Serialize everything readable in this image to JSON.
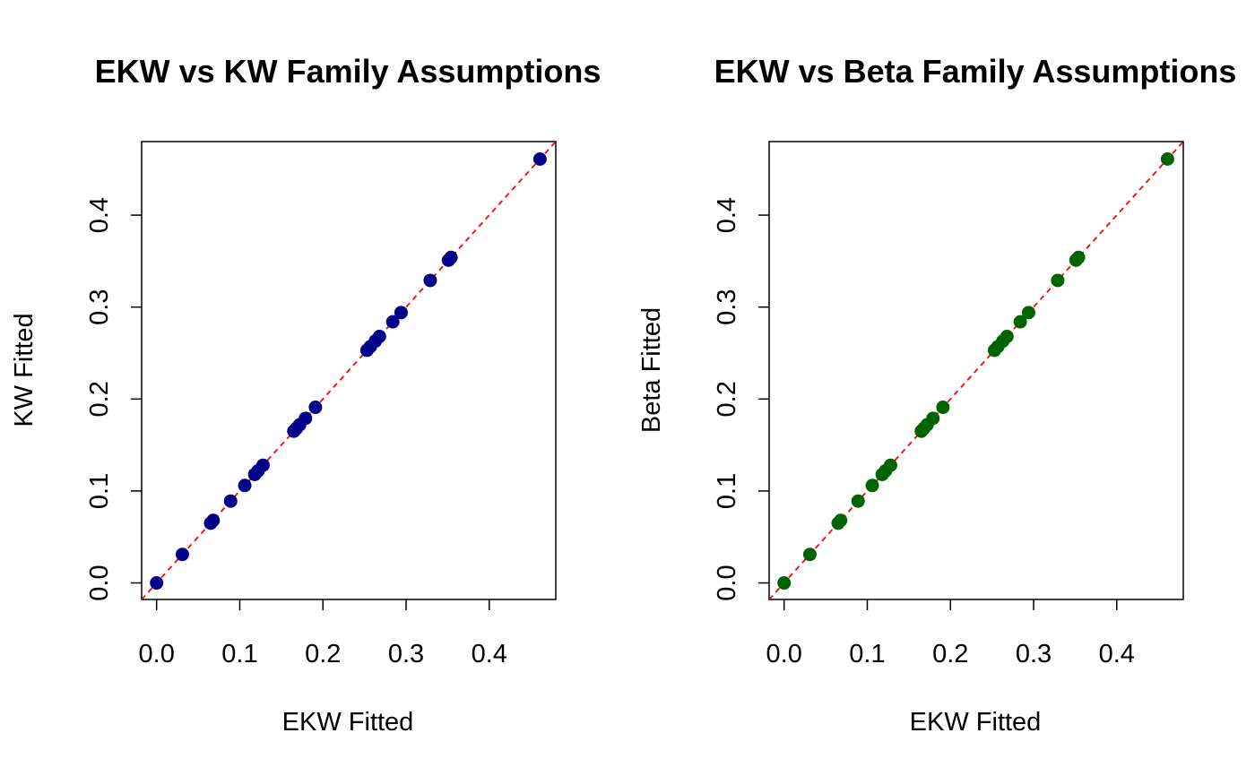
{
  "chart_data": [
    {
      "type": "scatter",
      "title": "EKW vs KW Family Assumptions",
      "xlabel": "EKW Fitted",
      "ylabel": "KW Fitted",
      "xlim": [
        -0.018,
        0.48
      ],
      "ylim": [
        -0.018,
        0.48
      ],
      "xticks": [
        0.0,
        0.1,
        0.2,
        0.3,
        0.4
      ],
      "yticks": [
        0.0,
        0.1,
        0.2,
        0.3,
        0.4
      ],
      "xtick_labels": [
        "0.0",
        "0.1",
        "0.2",
        "0.3",
        "0.4"
      ],
      "ytick_labels": [
        "0.0",
        "0.1",
        "0.2",
        "0.3",
        "0.4"
      ],
      "point_color": "#00008B",
      "reference_line": {
        "type": "y=x",
        "style": "dashed",
        "color": "#FF0000"
      },
      "series": [
        {
          "x": [
            0.0,
            0.031,
            0.065,
            0.068,
            0.089,
            0.106,
            0.118,
            0.122,
            0.128,
            0.165,
            0.168,
            0.172,
            0.179,
            0.191,
            0.253,
            0.257,
            0.263,
            0.268,
            0.284,
            0.294,
            0.329,
            0.351,
            0.354,
            0.461
          ],
          "y": [
            0.0,
            0.031,
            0.065,
            0.068,
            0.089,
            0.106,
            0.118,
            0.122,
            0.128,
            0.165,
            0.168,
            0.172,
            0.179,
            0.191,
            0.253,
            0.257,
            0.263,
            0.268,
            0.284,
            0.294,
            0.329,
            0.351,
            0.354,
            0.461
          ]
        }
      ]
    },
    {
      "type": "scatter",
      "title": "EKW vs Beta Family Assumptions",
      "xlabel": "EKW Fitted",
      "ylabel": "Beta Fitted",
      "xlim": [
        -0.018,
        0.48
      ],
      "ylim": [
        -0.018,
        0.48
      ],
      "xticks": [
        0.0,
        0.1,
        0.2,
        0.3,
        0.4
      ],
      "yticks": [
        0.0,
        0.1,
        0.2,
        0.3,
        0.4
      ],
      "xtick_labels": [
        "0.0",
        "0.1",
        "0.2",
        "0.3",
        "0.4"
      ],
      "ytick_labels": [
        "0.0",
        "0.1",
        "0.2",
        "0.3",
        "0.4"
      ],
      "point_color": "#006400",
      "reference_line": {
        "type": "y=x",
        "style": "dashed",
        "color": "#FF0000"
      },
      "series": [
        {
          "x": [
            0.0,
            0.031,
            0.065,
            0.068,
            0.089,
            0.106,
            0.118,
            0.122,
            0.128,
            0.165,
            0.168,
            0.172,
            0.179,
            0.191,
            0.253,
            0.257,
            0.263,
            0.268,
            0.284,
            0.294,
            0.329,
            0.351,
            0.354,
            0.461
          ],
          "y": [
            0.0,
            0.031,
            0.065,
            0.068,
            0.089,
            0.106,
            0.118,
            0.122,
            0.128,
            0.165,
            0.168,
            0.172,
            0.179,
            0.191,
            0.253,
            0.257,
            0.263,
            0.268,
            0.284,
            0.294,
            0.329,
            0.351,
            0.354,
            0.461
          ]
        }
      ]
    }
  ]
}
